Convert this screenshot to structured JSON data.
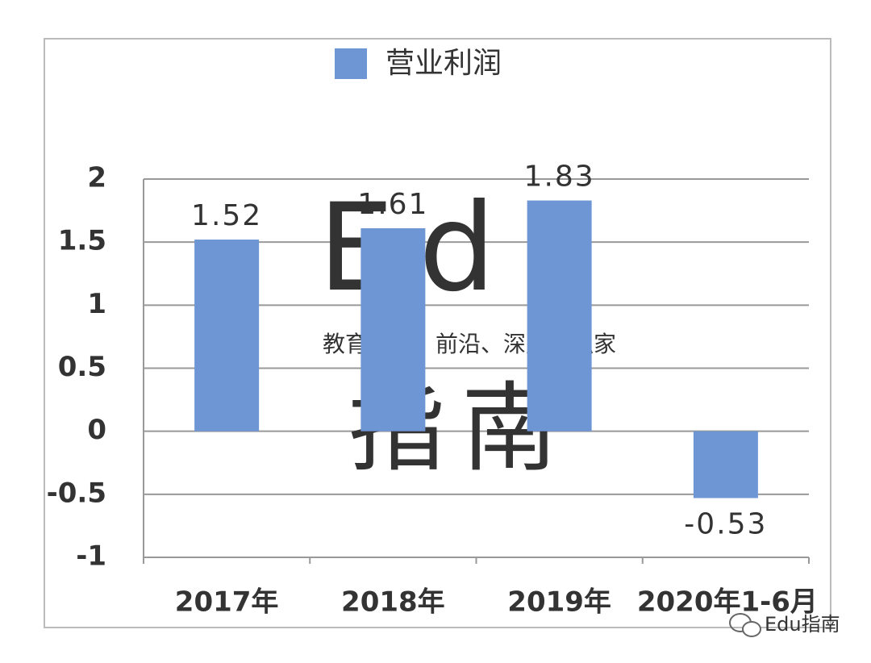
{
  "chart_data": {
    "type": "bar",
    "categories": [
      "2017年",
      "2018年",
      "2019年",
      "2020年1-6月"
    ],
    "series": [
      {
        "name": "营业利润",
        "color": "#6f96d4",
        "values": [
          1.52,
          1.61,
          1.83,
          -0.53
        ]
      }
    ],
    "ylim": [
      -1,
      2
    ],
    "yticks": [
      2,
      1.5,
      1,
      0.5,
      0,
      -0.5,
      -1
    ],
    "grid": true,
    "legend": "top",
    "annotations": [
      "Edu",
      "指南",
      "教育行业，前沿、深度、独家",
      "Edu指南"
    ]
  }
}
